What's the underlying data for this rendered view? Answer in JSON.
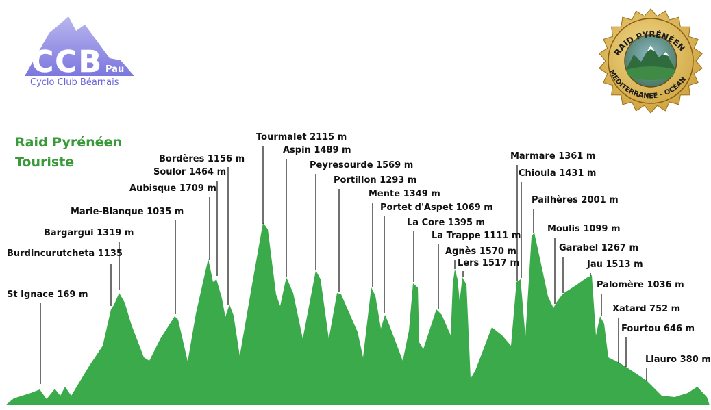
{
  "header": {
    "logo_left": {
      "letters": "CCB",
      "city": "Pau",
      "club": "Cyclo Club Béarnais"
    },
    "logo_right": {
      "top_text": "RAID PYRÉNÉEN",
      "bottom_text": "MEDITERRANÉE - OCÉAN"
    }
  },
  "chart_data": {
    "type": "area",
    "title_lines": [
      "Raid Pyrénéen",
      "Touriste"
    ],
    "xlabel": "",
    "ylabel": "",
    "grid": false,
    "colors": {
      "fill": "#3aaa4a",
      "title": "#3a9a3a",
      "label": "#111111"
    },
    "passes": [
      {
        "label": "St Ignace 169 m",
        "name": "St Ignace",
        "elevation_m": 169
      },
      {
        "label": "Burdincurutcheta 1135",
        "name": "Burdincurutcheta",
        "elevation_m": 1135
      },
      {
        "label": "Bargargui 1319 m",
        "name": "Bargargui",
        "elevation_m": 1319
      },
      {
        "label": "Marie-Blanque 1035 m",
        "name": "Marie-Blanque",
        "elevation_m": 1035
      },
      {
        "label": "Aubisque 1709 m",
        "name": "Aubisque",
        "elevation_m": 1709
      },
      {
        "label": "Soulor 1464 m",
        "name": "Soulor",
        "elevation_m": 1464
      },
      {
        "label": "Bordères 1156 m",
        "name": "Bordères",
        "elevation_m": 1156
      },
      {
        "label": "Tourmalet 2115 m",
        "name": "Tourmalet",
        "elevation_m": 2115
      },
      {
        "label": "Aspin 1489 m",
        "name": "Aspin",
        "elevation_m": 1489
      },
      {
        "label": "Peyresourde 1569 m",
        "name": "Peyresourde",
        "elevation_m": 1569
      },
      {
        "label": "Portillon 1293 m",
        "name": "Portillon",
        "elevation_m": 1293
      },
      {
        "label": "Mente 1349 m",
        "name": "Mente",
        "elevation_m": 1349
      },
      {
        "label": "Portet d'Aspet 1069 m",
        "name": "Portet d'Aspet",
        "elevation_m": 1069
      },
      {
        "label": "La Core 1395 m",
        "name": "La Core",
        "elevation_m": 1395
      },
      {
        "label": "La Trappe 1111 m",
        "name": "La Trappe",
        "elevation_m": 1111
      },
      {
        "label": "Agnès 1570 m",
        "name": "Agnès",
        "elevation_m": 1570
      },
      {
        "label": "Lers 1517 m",
        "name": "Lers",
        "elevation_m": 1517
      },
      {
        "label": "Marmare 1361 m",
        "name": "Marmare",
        "elevation_m": 1361
      },
      {
        "label": "Chioula 1431 m",
        "name": "Chioula",
        "elevation_m": 1431
      },
      {
        "label": "Pailhères 2001 m",
        "name": "Pailhères",
        "elevation_m": 2001
      },
      {
        "label": "Moulis 1099 m",
        "name": "Moulis",
        "elevation_m": 1099
      },
      {
        "label": "Garabel 1267 m",
        "name": "Garabel",
        "elevation_m": 1267
      },
      {
        "label": "Jau 1513 m",
        "name": "Jau",
        "elevation_m": 1513
      },
      {
        "label": "Palomère 1036 m",
        "name": "Palomère",
        "elevation_m": 1036
      },
      {
        "label": "Xatard 752 m",
        "name": "Xatard",
        "elevation_m": 752
      },
      {
        "label": "Fourtou 646 m",
        "name": "Fourtou",
        "elevation_m": 646
      },
      {
        "label": "Llauro 380 m",
        "name": "Llauro",
        "elevation_m": 380
      }
    ]
  }
}
